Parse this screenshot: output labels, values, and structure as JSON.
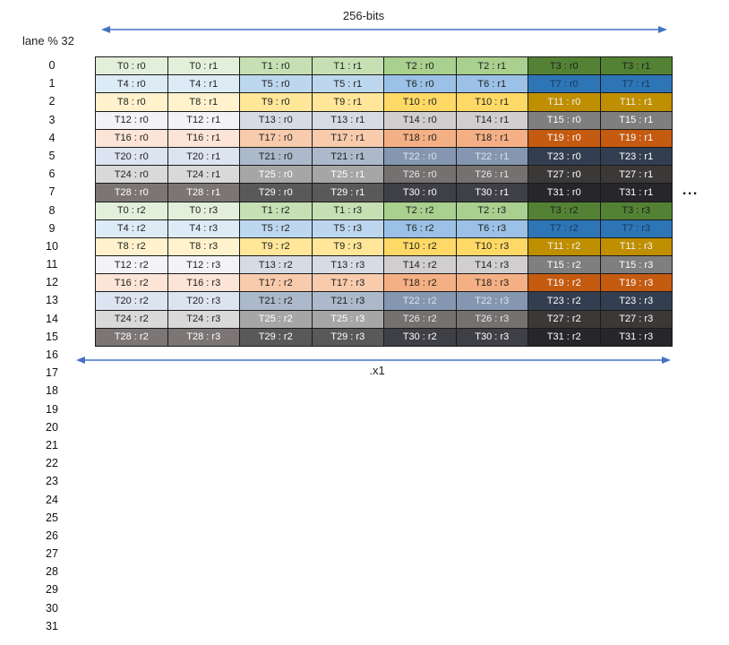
{
  "top_arrow": {
    "label": "256-bits"
  },
  "bottom_arrow": {
    "label": ".x1"
  },
  "ellipsis": "...",
  "lane_axis": {
    "label": "lane % 32",
    "lanes": [
      "0",
      "1",
      "2",
      "3",
      "4",
      "5",
      "6",
      "7",
      "8",
      "9",
      "10",
      "11",
      "12",
      "13",
      "14",
      "15",
      "16",
      "17",
      "18",
      "19",
      "20",
      "21",
      "22",
      "23",
      "24",
      "25",
      "26",
      "27",
      "28",
      "29",
      "30",
      "31"
    ]
  },
  "colors": {
    "arrow": "#4472c4",
    "grid_border": "#1a1a1a"
  },
  "table": {
    "rows": [
      {
        "lane": "0",
        "cells": [
          {
            "t": "T0 : r0",
            "bg": "#e2efda"
          },
          {
            "t": "T0 : r1",
            "bg": "#e2efda"
          },
          {
            "t": "T1 : r0",
            "bg": "#c6e0b4"
          },
          {
            "t": "T1 : r1",
            "bg": "#c6e0b4"
          },
          {
            "t": "T2 : r0",
            "bg": "#a9d08e"
          },
          {
            "t": "T2 : r1",
            "bg": "#a9d08e"
          },
          {
            "t": "T3 : r0",
            "bg": "#548235"
          },
          {
            "t": "T3 : r1",
            "bg": "#548235"
          }
        ]
      },
      {
        "lane": "1",
        "cells": [
          {
            "t": "T4 : r0",
            "bg": "#ddebf7"
          },
          {
            "t": "T4 : r1",
            "bg": "#ddebf7"
          },
          {
            "t": "T5 : r0",
            "bg": "#bdd7ee"
          },
          {
            "t": "T5 : r1",
            "bg": "#bdd7ee"
          },
          {
            "t": "T6 : r0",
            "bg": "#9bc2e6"
          },
          {
            "t": "T6 : r1",
            "bg": "#9bc2e6"
          },
          {
            "t": "T7 : r0",
            "bg": "#2e75b6",
            "fg": "#17375d"
          },
          {
            "t": "T7 : r1",
            "bg": "#2e75b6",
            "fg": "#17375d"
          }
        ]
      },
      {
        "lane": "2",
        "cells": [
          {
            "t": "T8 : r0",
            "bg": "#fff2cc"
          },
          {
            "t": "T8 : r1",
            "bg": "#fff2cc"
          },
          {
            "t": "T9 : r0",
            "bg": "#ffe699"
          },
          {
            "t": "T9 : r1",
            "bg": "#ffe699"
          },
          {
            "t": "T10 : r0",
            "bg": "#ffd966"
          },
          {
            "t": "T10 : r1",
            "bg": "#ffd966"
          },
          {
            "t": "T11 : r0",
            "bg": "#bf8f00",
            "fg": "#f2f2f2"
          },
          {
            "t": "T11 : r1",
            "bg": "#bf8f00",
            "fg": "#f2f2f2"
          }
        ]
      },
      {
        "lane": "3",
        "cells": [
          {
            "t": "T12 : r0",
            "bg": "#f2f2f7"
          },
          {
            "t": "T12 : r1",
            "bg": "#f2f2f7"
          },
          {
            "t": "T13 : r0",
            "bg": "#d6dce4"
          },
          {
            "t": "T13 : r1",
            "bg": "#d6dce4"
          },
          {
            "t": "T14 : r0",
            "bg": "#d0cece"
          },
          {
            "t": "T14 : r1",
            "bg": "#d0cece"
          },
          {
            "t": "T15 : r0",
            "bg": "#7f7f7f",
            "fg": "#ffffff"
          },
          {
            "t": "T15 : r1",
            "bg": "#7f7f7f",
            "fg": "#ffffff"
          }
        ]
      },
      {
        "lane": "4",
        "cells": [
          {
            "t": "T16 : r0",
            "bg": "#fce4d6"
          },
          {
            "t": "T16 : r1",
            "bg": "#fce4d6"
          },
          {
            "t": "T17 : r0",
            "bg": "#f8cbad"
          },
          {
            "t": "T17 : r1",
            "bg": "#f8cbad"
          },
          {
            "t": "T18 : r0",
            "bg": "#f4b084"
          },
          {
            "t": "T18 : r1",
            "bg": "#f4b084"
          },
          {
            "t": "T19 : r0",
            "bg": "#c55a11",
            "fg": "#ffffff"
          },
          {
            "t": "T19 : r1",
            "bg": "#c55a11",
            "fg": "#ffffff"
          }
        ]
      },
      {
        "lane": "5",
        "cells": [
          {
            "t": "T20 : r0",
            "bg": "#dce3f1"
          },
          {
            "t": "T20 : r1",
            "bg": "#dce3f1"
          },
          {
            "t": "T21 : r0",
            "bg": "#acb9ca"
          },
          {
            "t": "T21 : r1",
            "bg": "#acb9ca"
          },
          {
            "t": "T22 : r0",
            "bg": "#8496b0",
            "fg": "#dde3ea"
          },
          {
            "t": "T22 : r1",
            "bg": "#8496b0",
            "fg": "#dde3ea"
          },
          {
            "t": "T23 : r0",
            "bg": "#333f50",
            "fg": "#ffffff"
          },
          {
            "t": "T23 : r1",
            "bg": "#333f50",
            "fg": "#ffffff"
          }
        ]
      },
      {
        "lane": "6",
        "cells": [
          {
            "t": "T24 : r0",
            "bg": "#d9d9d9"
          },
          {
            "t": "T24 : r1",
            "bg": "#d9d9d9"
          },
          {
            "t": "T25 : r0",
            "bg": "#a6a6a6",
            "fg": "#ffffff"
          },
          {
            "t": "T25 : r1",
            "bg": "#a6a6a6",
            "fg": "#ffffff"
          },
          {
            "t": "T26 : r0",
            "bg": "#757171",
            "fg": "#e7e6e6"
          },
          {
            "t": "T26 : r1",
            "bg": "#757171",
            "fg": "#e7e6e6"
          },
          {
            "t": "T27 : r0",
            "bg": "#3b3838",
            "fg": "#ffffff"
          },
          {
            "t": "T27 : r1",
            "bg": "#3b3838",
            "fg": "#ffffff"
          }
        ]
      },
      {
        "lane": "7",
        "cells": [
          {
            "t": "T28 : r0",
            "bg": "#7b7575",
            "fg": "#ffffff"
          },
          {
            "t": "T28 : r1",
            "bg": "#7b7575",
            "fg": "#ffffff"
          },
          {
            "t": "T29 : r0",
            "bg": "#595959",
            "fg": "#ffffff"
          },
          {
            "t": "T29 : r1",
            "bg": "#595959",
            "fg": "#ffffff"
          },
          {
            "t": "T30 : r0",
            "bg": "#3f3f46",
            "fg": "#ffffff"
          },
          {
            "t": "T30 : r1",
            "bg": "#3f3f46",
            "fg": "#ffffff"
          },
          {
            "t": "T31 : r0",
            "bg": "#26262b",
            "fg": "#ffffff"
          },
          {
            "t": "T31 : r1",
            "bg": "#26262b",
            "fg": "#ffffff"
          }
        ]
      },
      {
        "lane": "8",
        "cells": [
          {
            "t": "T0 : r2",
            "bg": "#e2efda"
          },
          {
            "t": "T0 : r3",
            "bg": "#e2efda"
          },
          {
            "t": "T1 : r2",
            "bg": "#c6e0b4"
          },
          {
            "t": "T1 : r3",
            "bg": "#c6e0b4"
          },
          {
            "t": "T2 : r2",
            "bg": "#a9d08e"
          },
          {
            "t": "T2 : r3",
            "bg": "#a9d08e"
          },
          {
            "t": "T3 : r2",
            "bg": "#548235"
          },
          {
            "t": "T3 : r3",
            "bg": "#548235"
          }
        ]
      },
      {
        "lane": "9",
        "cells": [
          {
            "t": "T4 : r2",
            "bg": "#ddebf7"
          },
          {
            "t": "T4 : r3",
            "bg": "#ddebf7"
          },
          {
            "t": "T5 : r2",
            "bg": "#bdd7ee"
          },
          {
            "t": "T5 : r3",
            "bg": "#bdd7ee"
          },
          {
            "t": "T6 : r2",
            "bg": "#9bc2e6"
          },
          {
            "t": "T6 : r3",
            "bg": "#9bc2e6"
          },
          {
            "t": "T7 : r2",
            "bg": "#2e75b6",
            "fg": "#17375d"
          },
          {
            "t": "T7 : r3",
            "bg": "#2e75b6",
            "fg": "#17375d"
          }
        ]
      },
      {
        "lane": "10",
        "cells": [
          {
            "t": "T8 : r2",
            "bg": "#fff2cc"
          },
          {
            "t": "T8 : r3",
            "bg": "#fff2cc"
          },
          {
            "t": "T9 : r2",
            "bg": "#ffe699"
          },
          {
            "t": "T9 : r3",
            "bg": "#ffe699"
          },
          {
            "t": "T10 : r2",
            "bg": "#ffd966"
          },
          {
            "t": "T10 : r3",
            "bg": "#ffd966"
          },
          {
            "t": "T11 : r2",
            "bg": "#bf8f00",
            "fg": "#f2f2f2"
          },
          {
            "t": "T11 : r3",
            "bg": "#bf8f00",
            "fg": "#f2f2f2"
          }
        ]
      },
      {
        "lane": "11",
        "cells": [
          {
            "t": "T12 : r2",
            "bg": "#f2f2f7"
          },
          {
            "t": "T12 : r3",
            "bg": "#f2f2f7"
          },
          {
            "t": "T13 : r2",
            "bg": "#d6dce4"
          },
          {
            "t": "T13 : r3",
            "bg": "#d6dce4"
          },
          {
            "t": "T14 : r2",
            "bg": "#d0cece"
          },
          {
            "t": "T14 : r3",
            "bg": "#d0cece"
          },
          {
            "t": "T15 : r2",
            "bg": "#7f7f7f",
            "fg": "#ffffff"
          },
          {
            "t": "T15 : r3",
            "bg": "#7f7f7f",
            "fg": "#ffffff"
          }
        ]
      },
      {
        "lane": "12",
        "cells": [
          {
            "t": "T16 : r2",
            "bg": "#fce4d6"
          },
          {
            "t": "T16 : r3",
            "bg": "#fce4d6"
          },
          {
            "t": "T17 : r2",
            "bg": "#f8cbad"
          },
          {
            "t": "T17 : r3",
            "bg": "#f8cbad"
          },
          {
            "t": "T18 : r2",
            "bg": "#f4b084"
          },
          {
            "t": "T18 : r3",
            "bg": "#f4b084"
          },
          {
            "t": "T19 : r2",
            "bg": "#c55a11",
            "fg": "#ffffff"
          },
          {
            "t": "T19 : r3",
            "bg": "#c55a11",
            "fg": "#ffffff"
          }
        ]
      },
      {
        "lane": "13",
        "cells": [
          {
            "t": "T20 : r2",
            "bg": "#dce3f1"
          },
          {
            "t": "T20 : r3",
            "bg": "#dce3f1"
          },
          {
            "t": "T21 : r2",
            "bg": "#acb9ca"
          },
          {
            "t": "T21 : r3",
            "bg": "#acb9ca"
          },
          {
            "t": "T22 : r2",
            "bg": "#8496b0",
            "fg": "#dde3ea"
          },
          {
            "t": "T22 : r3",
            "bg": "#8496b0",
            "fg": "#dde3ea"
          },
          {
            "t": "T23 : r2",
            "bg": "#333f50",
            "fg": "#ffffff"
          },
          {
            "t": "T23 : r3",
            "bg": "#333f50",
            "fg": "#ffffff"
          }
        ]
      },
      {
        "lane": "14",
        "cells": [
          {
            "t": "T24 : r2",
            "bg": "#d9d9d9"
          },
          {
            "t": "T24 : r3",
            "bg": "#d9d9d9"
          },
          {
            "t": "T25 : r2",
            "bg": "#a6a6a6",
            "fg": "#ffffff"
          },
          {
            "t": "T25 : r3",
            "bg": "#a6a6a6",
            "fg": "#ffffff"
          },
          {
            "t": "T26 : r2",
            "bg": "#757171",
            "fg": "#e7e6e6"
          },
          {
            "t": "T26 : r3",
            "bg": "#757171",
            "fg": "#e7e6e6"
          },
          {
            "t": "T27 : r2",
            "bg": "#3b3838",
            "fg": "#ffffff"
          },
          {
            "t": "T27 : r3",
            "bg": "#3b3838",
            "fg": "#ffffff"
          }
        ]
      },
      {
        "lane": "15",
        "cells": [
          {
            "t": "T28 : r2",
            "bg": "#7b7575",
            "fg": "#ffffff"
          },
          {
            "t": "T28 : r3",
            "bg": "#7b7575",
            "fg": "#ffffff"
          },
          {
            "t": "T29 : r2",
            "bg": "#595959",
            "fg": "#ffffff"
          },
          {
            "t": "T29 : r3",
            "bg": "#595959",
            "fg": "#ffffff"
          },
          {
            "t": "T30 : r2",
            "bg": "#3f3f46",
            "fg": "#ffffff"
          },
          {
            "t": "T30 : r3",
            "bg": "#3f3f46",
            "fg": "#ffffff"
          },
          {
            "t": "T31 : r2",
            "bg": "#26262b",
            "fg": "#ffffff"
          },
          {
            "t": "T31 : r3",
            "bg": "#26262b",
            "fg": "#ffffff"
          }
        ]
      }
    ]
  }
}
